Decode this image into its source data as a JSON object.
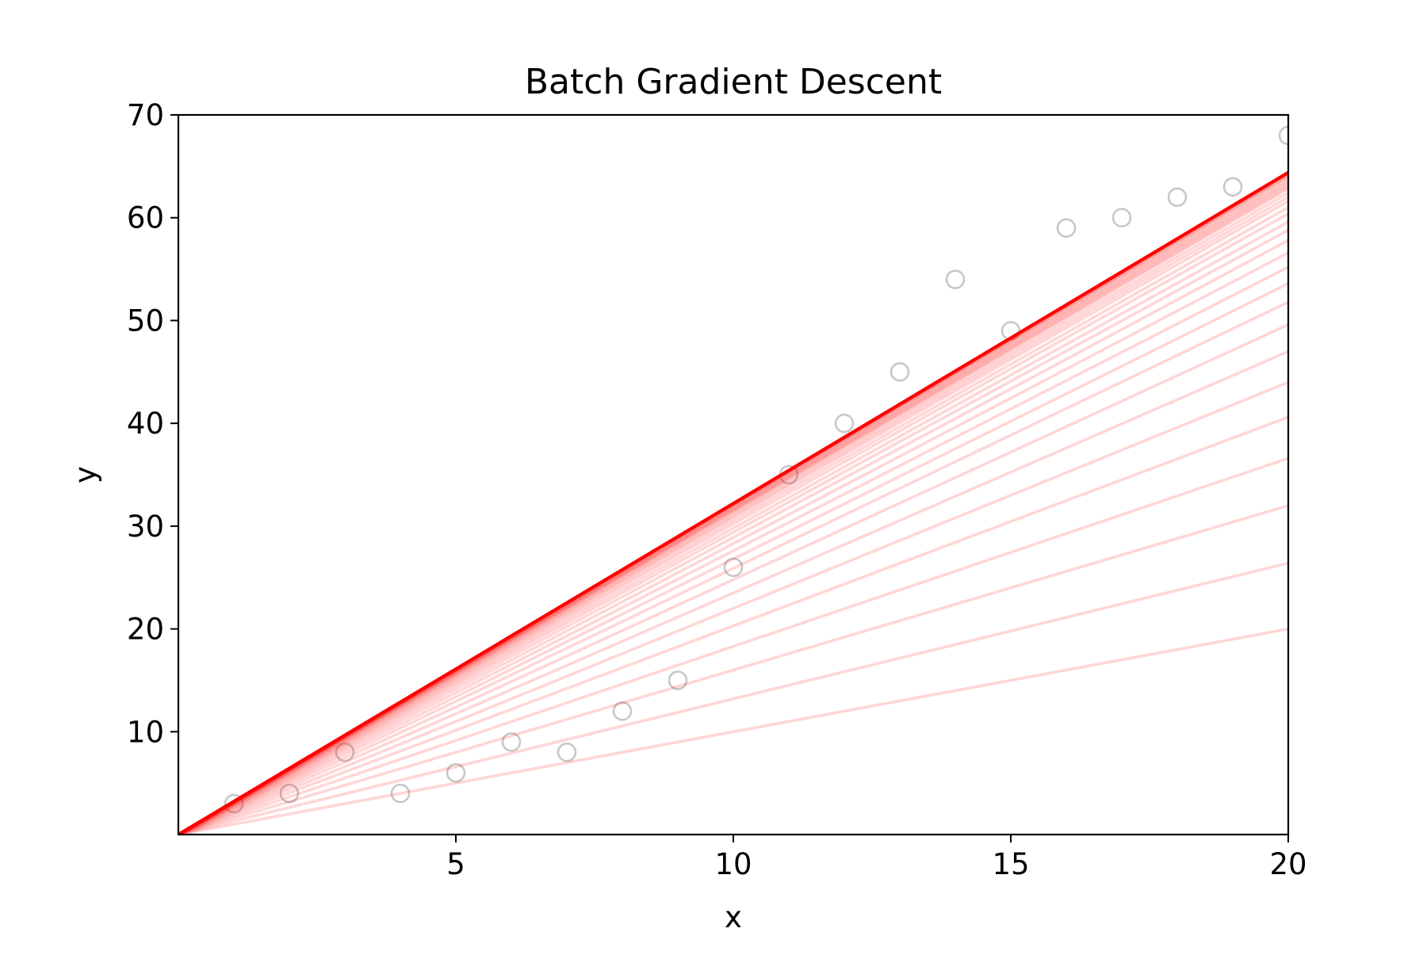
{
  "chart_data": {
    "type": "scatter",
    "title": "Batch Gradient Descent",
    "xlabel": "x",
    "ylabel": "y",
    "xlim": [
      0,
      20
    ],
    "ylim": [
      0,
      70
    ],
    "xticks": [
      5,
      10,
      15,
      20
    ],
    "yticks": [
      10,
      20,
      30,
      40,
      50,
      60,
      70
    ],
    "xtick_labels": [
      "5",
      "10",
      "15",
      "20"
    ],
    "ytick_labels": [
      "10",
      "20",
      "30",
      "40",
      "50",
      "60",
      "70"
    ],
    "grid": false,
    "legend": "none",
    "points": {
      "x": [
        1,
        2,
        3,
        4,
        5,
        6,
        7,
        8,
        9,
        10,
        11,
        12,
        13,
        14,
        15,
        16,
        17,
        18,
        19,
        20
      ],
      "y": [
        3,
        4,
        8,
        4,
        6,
        9,
        8,
        12,
        15,
        26,
        35,
        40,
        45,
        54,
        49,
        59,
        60,
        62,
        63,
        68
      ],
      "color": "#c8c8c8"
    },
    "fit_lines": {
      "intercept": 0,
      "slopes": [
        1.0,
        1.32,
        1.6,
        1.83,
        2.03,
        2.2,
        2.35,
        2.48,
        2.59,
        2.68,
        2.76,
        2.83,
        2.89,
        2.94,
        2.98,
        3.02,
        3.05,
        3.08,
        3.1,
        3.12,
        3.14,
        3.15,
        3.16,
        3.17,
        3.18,
        3.19,
        3.2,
        3.205,
        3.21,
        3.215
      ],
      "final_slope": 3.22,
      "color": "#ff0000",
      "history_opacity": 0.16
    }
  }
}
